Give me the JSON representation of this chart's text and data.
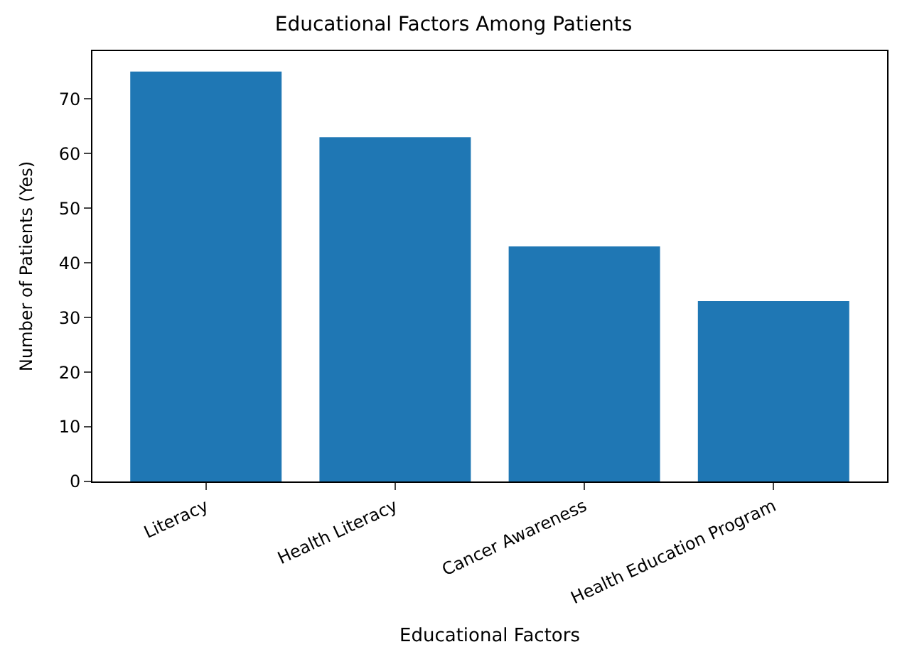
{
  "chart_data": {
    "type": "bar",
    "title": "Educational Factors Among Patients",
    "xlabel": "Educational Factors",
    "ylabel": "Number of Patients (Yes)",
    "categories": [
      "Literacy",
      "Health Literacy",
      "Cancer Awareness",
      "Health Education Program"
    ],
    "values": [
      75,
      63,
      43,
      33
    ],
    "color": "#1f77b4",
    "ylim": [
      0,
      78.75
    ],
    "yticks": [
      0,
      10,
      20,
      30,
      40,
      50,
      60,
      70
    ]
  }
}
